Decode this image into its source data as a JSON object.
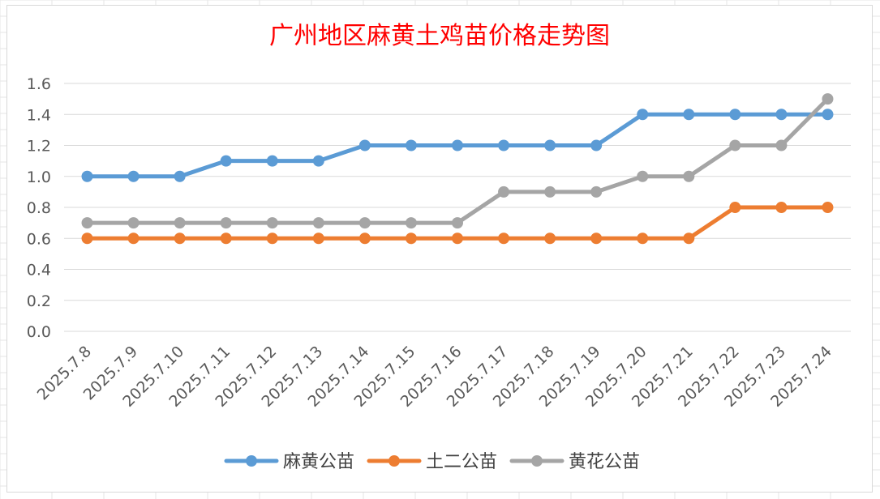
{
  "chart_data": {
    "type": "line",
    "title": "广州地区麻黄土鸡苗价格走势图",
    "categories": [
      "2025.7.8",
      "2025.7.9",
      "2025.7.10",
      "2025.7.11",
      "2025.7.12",
      "2025.7.13",
      "2025.7.14",
      "2025.7.15",
      "2025.7.16",
      "2025.7.17",
      "2025.7.18",
      "2025.7.19",
      "2025.7.20",
      "2025.7.21",
      "2025.7.22",
      "2025.7.23",
      "2025.7.24"
    ],
    "series": [
      {
        "name": "麻黄公苗",
        "color": "#5b9bd5",
        "values": [
          1.0,
          1.0,
          1.0,
          1.1,
          1.1,
          1.1,
          1.2,
          1.2,
          1.2,
          1.2,
          1.2,
          1.2,
          1.4,
          1.4,
          1.4,
          1.4,
          1.4
        ]
      },
      {
        "name": "土二公苗",
        "color": "#ed7d31",
        "values": [
          0.6,
          0.6,
          0.6,
          0.6,
          0.6,
          0.6,
          0.6,
          0.6,
          0.6,
          0.6,
          0.6,
          0.6,
          0.6,
          0.6,
          0.8,
          0.8,
          0.8
        ]
      },
      {
        "name": "黄花公苗",
        "color": "#a5a5a5",
        "values": [
          0.7,
          0.7,
          0.7,
          0.7,
          0.7,
          0.7,
          0.7,
          0.7,
          0.7,
          0.9,
          0.9,
          0.9,
          1.0,
          1.0,
          1.2,
          1.2,
          1.5
        ]
      }
    ],
    "yticks": [
      "0.0",
      "0.2",
      "0.4",
      "0.6",
      "0.8",
      "1.0",
      "1.2",
      "1.4",
      "1.6"
    ],
    "ylim": [
      0,
      1.6
    ],
    "grid": true,
    "legend_position": "bottom",
    "title_color": "#ff0000"
  }
}
